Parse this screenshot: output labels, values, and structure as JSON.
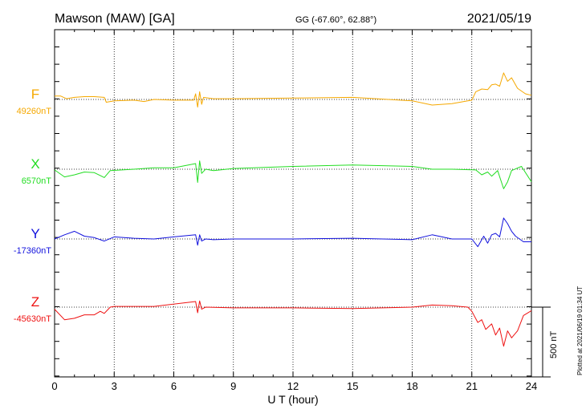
{
  "chart_data": {
    "type": "line",
    "header": {
      "station": "Mawson (MAW)  [GA]",
      "coords": "GG (-67.60°,  62.88°)",
      "date": "2021/05/19"
    },
    "xlabel": "U T (hour)",
    "xlim": [
      0,
      24
    ],
    "xticks": [
      "0",
      "3",
      "6",
      "9",
      "12",
      "15",
      "18",
      "21",
      "24"
    ],
    "scale_bar": {
      "label": "500 nT",
      "value_nT": 500
    },
    "plot_note": "Plotted at 2021/06/19 01:34 UT",
    "series": [
      {
        "name": "F",
        "baseline_label": "49260nT",
        "baseline_nT": 49260,
        "color": "#f5a800",
        "points": [
          [
            0,
            25
          ],
          [
            0.3,
            25
          ],
          [
            0.6,
            5
          ],
          [
            1.0,
            15
          ],
          [
            1.5,
            20
          ],
          [
            2.0,
            20
          ],
          [
            2.5,
            15
          ],
          [
            2.6,
            -20
          ],
          [
            3,
            -10
          ],
          [
            4,
            -5
          ],
          [
            4.5,
            -15
          ],
          [
            5,
            0
          ],
          [
            6,
            -5
          ],
          [
            7.0,
            -5
          ],
          [
            7.1,
            40
          ],
          [
            7.2,
            -55
          ],
          [
            7.3,
            55
          ],
          [
            7.4,
            -35
          ],
          [
            7.5,
            15
          ],
          [
            8,
            5
          ],
          [
            9,
            5
          ],
          [
            12,
            10
          ],
          [
            15,
            15
          ],
          [
            18,
            -10
          ],
          [
            19,
            -40
          ],
          [
            20,
            -30
          ],
          [
            21,
            -5
          ],
          [
            21.2,
            55
          ],
          [
            21.5,
            75
          ],
          [
            21.8,
            70
          ],
          [
            22.0,
            105
          ],
          [
            22.2,
            110
          ],
          [
            22.4,
            95
          ],
          [
            22.6,
            190
          ],
          [
            22.8,
            130
          ],
          [
            23.0,
            155
          ],
          [
            23.3,
            80
          ],
          [
            23.7,
            40
          ],
          [
            24,
            30
          ]
        ]
      },
      {
        "name": "X",
        "baseline_label": "6570nT",
        "baseline_nT": 6570,
        "color": "#22dd22",
        "points": [
          [
            0,
            -5
          ],
          [
            0.5,
            -55
          ],
          [
            1,
            -40
          ],
          [
            1.5,
            -20
          ],
          [
            2.0,
            -25
          ],
          [
            2.5,
            -60
          ],
          [
            2.8,
            -10
          ],
          [
            4,
            0
          ],
          [
            5,
            10
          ],
          [
            6,
            10
          ],
          [
            7.1,
            40
          ],
          [
            7.2,
            -95
          ],
          [
            7.3,
            60
          ],
          [
            7.4,
            -30
          ],
          [
            7.6,
            0
          ],
          [
            8,
            -10
          ],
          [
            9,
            5
          ],
          [
            12,
            20
          ],
          [
            15,
            30
          ],
          [
            18,
            20
          ],
          [
            19,
            0
          ],
          [
            20,
            0
          ],
          [
            21.2,
            -5
          ],
          [
            21.5,
            -40
          ],
          [
            21.8,
            -20
          ],
          [
            22,
            -50
          ],
          [
            22.3,
            -10
          ],
          [
            22.6,
            -140
          ],
          [
            22.8,
            -90
          ],
          [
            23.0,
            -10
          ],
          [
            23.5,
            20
          ],
          [
            24,
            -90
          ]
        ]
      },
      {
        "name": "Y",
        "baseline_label": "-17360nT",
        "baseline_nT": -17360,
        "color": "#1111dd",
        "points": [
          [
            0,
            0
          ],
          [
            0.5,
            30
          ],
          [
            1.0,
            55
          ],
          [
            1.5,
            20
          ],
          [
            2,
            10
          ],
          [
            2.5,
            -15
          ],
          [
            3,
            15
          ],
          [
            4,
            5
          ],
          [
            5,
            0
          ],
          [
            6,
            15
          ],
          [
            7.1,
            30
          ],
          [
            7.2,
            -45
          ],
          [
            7.3,
            30
          ],
          [
            7.4,
            -15
          ],
          [
            7.6,
            0
          ],
          [
            8,
            -5
          ],
          [
            9,
            0
          ],
          [
            12,
            0
          ],
          [
            15,
            5
          ],
          [
            18,
            -5
          ],
          [
            19,
            30
          ],
          [
            20,
            0
          ],
          [
            21,
            0
          ],
          [
            21.3,
            -55
          ],
          [
            21.6,
            20
          ],
          [
            21.8,
            -30
          ],
          [
            22.0,
            30
          ],
          [
            22.2,
            40
          ],
          [
            22.4,
            15
          ],
          [
            22.6,
            150
          ],
          [
            22.8,
            110
          ],
          [
            23.0,
            55
          ],
          [
            23.2,
            20
          ],
          [
            23.6,
            -20
          ],
          [
            24,
            -20
          ]
        ]
      },
      {
        "name": "Z",
        "baseline_label": "-45630nT",
        "baseline_nT": -45630,
        "color": "#ee1111",
        "points": [
          [
            0,
            -15
          ],
          [
            0.5,
            -90
          ],
          [
            1,
            -80
          ],
          [
            1.5,
            -55
          ],
          [
            2.0,
            -55
          ],
          [
            2.3,
            -30
          ],
          [
            2.5,
            -45
          ],
          [
            2.8,
            0
          ],
          [
            3,
            5
          ],
          [
            5,
            5
          ],
          [
            7.1,
            40
          ],
          [
            7.2,
            -40
          ],
          [
            7.3,
            45
          ],
          [
            7.4,
            -15
          ],
          [
            7.6,
            0
          ],
          [
            9,
            -5
          ],
          [
            12,
            -5
          ],
          [
            15,
            -10
          ],
          [
            18,
            0
          ],
          [
            19,
            15
          ],
          [
            20,
            10
          ],
          [
            20.8,
            0
          ],
          [
            21.0,
            -30
          ],
          [
            21.3,
            -110
          ],
          [
            21.5,
            -90
          ],
          [
            21.7,
            -160
          ],
          [
            22.0,
            -120
          ],
          [
            22.2,
            -200
          ],
          [
            22.4,
            -150
          ],
          [
            22.6,
            -280
          ],
          [
            22.8,
            -170
          ],
          [
            23.0,
            -220
          ],
          [
            23.3,
            -170
          ],
          [
            23.6,
            -60
          ],
          [
            24,
            -25
          ]
        ]
      }
    ]
  }
}
